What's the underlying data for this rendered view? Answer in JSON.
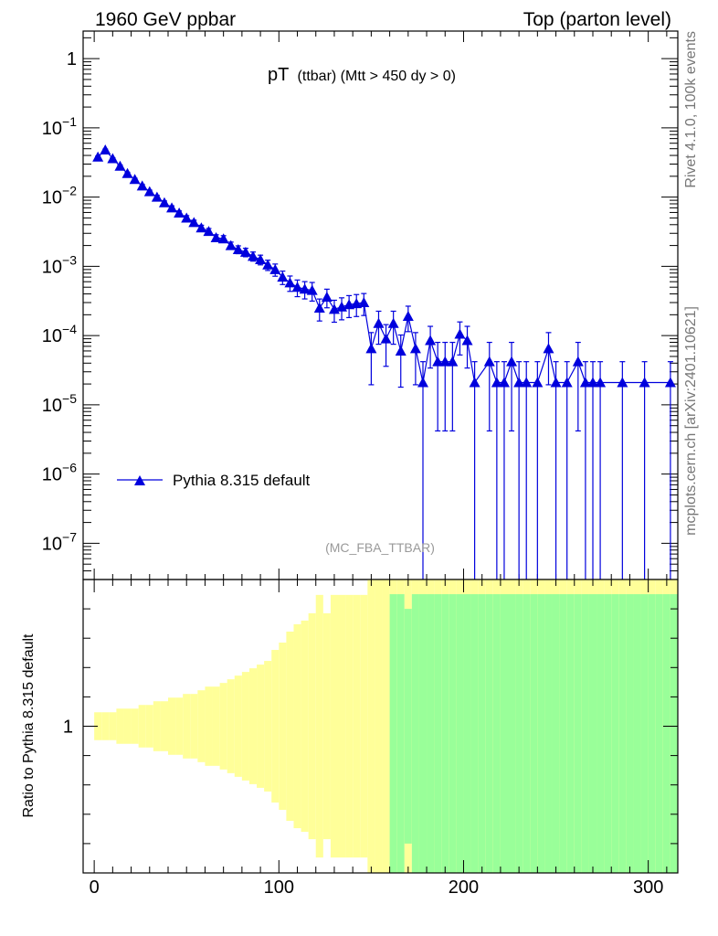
{
  "header": {
    "left": "1960 GeV ppbar",
    "right": "Top (parton level)"
  },
  "side_text": {
    "rivet": "Rivet 4.1.0,  100k events",
    "site": "mcplots.cern.ch [arXiv:2401.10621]"
  },
  "chart_data": [
    {
      "type": "line",
      "title_main": "pT",
      "title_detail": "(ttbar) (Mtt > 450 dy > 0)",
      "analysis_tag": "(MC_FBA_TTBAR)",
      "yscale": "log",
      "xlim": [
        -6,
        316
      ],
      "ylim": [
        3e-08,
        2.5
      ],
      "ytick_labels": [
        {
          "v": 1,
          "base": "1",
          "exp": ""
        },
        {
          "v": 0.1,
          "base": "10",
          "exp": "−1"
        },
        {
          "v": 0.01,
          "base": "10",
          "exp": "−2"
        },
        {
          "v": 0.001,
          "base": "10",
          "exp": "−3"
        },
        {
          "v": 0.0001,
          "base": "10",
          "exp": "−4"
        },
        {
          "v": 1e-05,
          "base": "10",
          "exp": "−5"
        },
        {
          "v": 1e-06,
          "base": "10",
          "exp": "−6"
        },
        {
          "v": 1e-07,
          "base": "10",
          "exp": "−7"
        }
      ],
      "legend": {
        "label": "Pythia 8.315 default",
        "position": "lower-left"
      },
      "series": [
        {
          "name": "Pythia 8.315 default",
          "color": "#0000dd",
          "x": [
            2,
            6,
            10,
            14,
            18,
            22,
            26,
            30,
            34,
            38,
            42,
            46,
            50,
            54,
            58,
            62,
            66,
            70,
            74,
            78,
            82,
            86,
            90,
            94,
            98,
            102,
            106,
            110,
            114,
            118,
            122,
            126,
            130,
            134,
            138,
            142,
            146,
            150,
            154,
            158,
            162,
            166,
            170,
            174,
            178,
            182,
            186,
            190,
            194,
            198,
            202,
            206,
            214,
            218,
            222,
            226,
            230,
            234,
            240,
            246,
            250,
            256,
            262,
            266,
            270,
            274,
            286,
            298,
            312
          ],
          "y": [
            0.038,
            0.048,
            0.036,
            0.028,
            0.022,
            0.018,
            0.0145,
            0.012,
            0.01,
            0.0083,
            0.007,
            0.0059,
            0.005,
            0.0043,
            0.0036,
            0.0032,
            0.0026,
            0.0025,
            0.002,
            0.00175,
            0.0016,
            0.0014,
            0.00125,
            0.00105,
            0.0009,
            0.0007,
            0.00058,
            0.0005,
            0.00047,
            0.00045,
            0.00025,
            0.00036,
            0.00024,
            0.00026,
            0.00028,
            0.00029,
            0.0003,
            6.5e-05,
            0.00015,
            9e-05,
            0.00015,
            6e-05,
            0.00019,
            6.5e-05,
            2.1e-05,
            8.5e-05,
            4.2e-05,
            4.2e-05,
            4.2e-05,
            0.000105,
            8.5e-05,
            2.1e-05,
            4.2e-05,
            2.1e-05,
            2.1e-05,
            4.2e-05,
            2.1e-05,
            2.1e-05,
            2.1e-05,
            6.5e-05,
            2.1e-05,
            2.1e-05,
            4.2e-05,
            2.1e-05,
            2.1e-05,
            2.1e-05,
            2.1e-05,
            2.1e-05,
            2.1e-05
          ],
          "rel_err": [
            0.03,
            0.03,
            0.03,
            0.04,
            0.04,
            0.04,
            0.05,
            0.05,
            0.06,
            0.06,
            0.07,
            0.07,
            0.08,
            0.08,
            0.09,
            0.1,
            0.1,
            0.11,
            0.12,
            0.13,
            0.14,
            0.15,
            0.16,
            0.17,
            0.2,
            0.22,
            0.25,
            0.27,
            0.28,
            0.3,
            0.35,
            0.3,
            0.35,
            0.35,
            0.35,
            0.35,
            0.35,
            0.7,
            0.5,
            0.6,
            0.5,
            0.7,
            0.4,
            0.7,
            1.0,
            0.6,
            0.9,
            0.9,
            0.9,
            0.5,
            0.6,
            1.0,
            0.9,
            1.0,
            1.0,
            0.9,
            1.0,
            1.0,
            1.0,
            0.7,
            1.0,
            1.0,
            0.9,
            1.0,
            1.0,
            1.0,
            1.0,
            1.0,
            1.0
          ]
        }
      ]
    },
    {
      "type": "bar",
      "ylabel": "Ratio to Pythia 8.315 default",
      "xlim": [
        -6,
        316
      ],
      "ylim": [
        0.5,
        1.5
      ],
      "ytick_label": "1",
      "xtick_labels": [
        {
          "v": 0,
          "label": "0"
        },
        {
          "v": 100,
          "label": "100"
        },
        {
          "v": 200,
          "label": "200"
        },
        {
          "v": 300,
          "label": "300"
        }
      ],
      "bands": [
        {
          "name": "stat-mc",
          "color": "#99ff99",
          "x0": 0,
          "x1": 316,
          "bin_width": 4
        },
        {
          "name": "total-mc",
          "color": "#ffff99",
          "x0": 0,
          "x1": 316,
          "bin_width": 4
        }
      ]
    }
  ]
}
